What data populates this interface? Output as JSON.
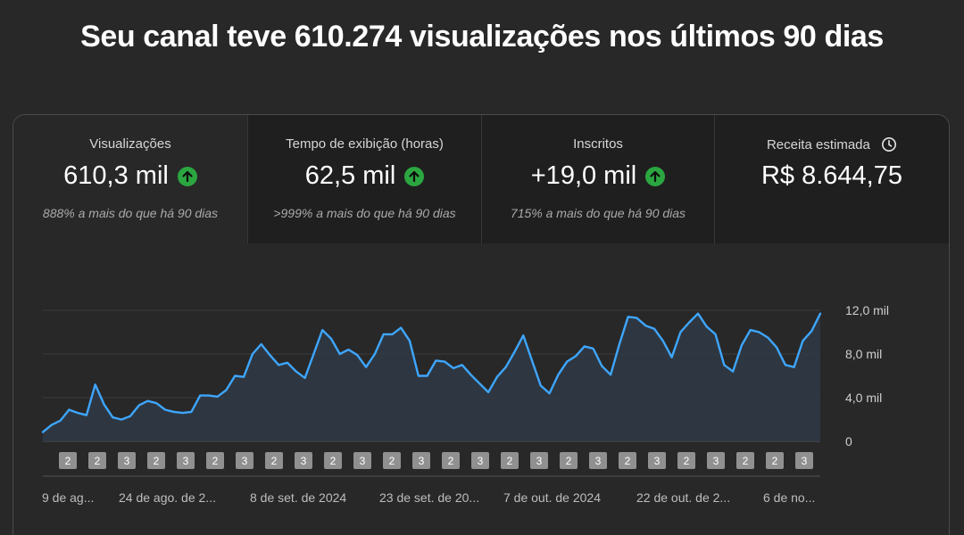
{
  "headline": "Seu canal teve 610.274 visualizações nos últimos 90 dias",
  "metrics": [
    {
      "label": "Visualizações",
      "value": "610,3 mil",
      "sub": "888% a mais do que há 90 dias",
      "icon": "arrow-up-icon"
    },
    {
      "label": "Tempo de exibição (horas)",
      "value": "62,5 mil",
      "sub": ">999% a mais do que há 90 dias",
      "icon": "arrow-up-icon"
    },
    {
      "label": "Inscritos",
      "value": "+19,0 mil",
      "sub": "715% a mais do que há 90 dias",
      "icon": "arrow-up-icon"
    },
    {
      "label": "Receita estimada",
      "value": "R$ 8.644,75",
      "icon": "clock-icon"
    }
  ],
  "colors": {
    "background": "#282828",
    "line": "#3ea6ff",
    "positive": "#2ba640",
    "badge": "#909090"
  },
  "chart_data": {
    "type": "area",
    "y_ticks": [
      "12,0 mil",
      "8,0 mil",
      "4,0 mil",
      "0"
    ],
    "ylim": [
      0,
      12000
    ],
    "x_tick_labels": [
      "9 de ag...",
      "24 de ago. de 2...",
      "8 de set. de 2024",
      "23 de set. de 20...",
      "7 de out. de 2024",
      "22 de out. de 2...",
      "6 de no..."
    ],
    "grid": true,
    "values": [
      850,
      1500,
      1900,
      2900,
      2600,
      2400,
      5200,
      3400,
      2200,
      2000,
      2300,
      3300,
      3700,
      3500,
      2900,
      2700,
      2600,
      2700,
      4200,
      4200,
      4100,
      4700,
      6000,
      5900,
      8000,
      8900,
      7900,
      7000,
      7200,
      6400,
      5800,
      8000,
      10200,
      9400,
      8000,
      8400,
      7900,
      6800,
      8000,
      9800,
      9800,
      10400,
      9200,
      6000,
      6000,
      7400,
      7300,
      6700,
      7000,
      6100,
      5300,
      4500,
      5900,
      6800,
      8200,
      9700,
      7400,
      5100,
      4400,
      6100,
      7300,
      7800,
      8700,
      8500,
      6900,
      6100,
      8900,
      11400,
      11300,
      10600,
      10300,
      9200,
      7700,
      10000,
      10900,
      11700,
      10500,
      9800,
      7000,
      6400,
      8800,
      10200,
      10000,
      9500,
      8600,
      7000,
      6800,
      9200,
      10100,
      11700
    ],
    "badges": [
      "2",
      "2",
      "3",
      "2",
      "3",
      "2",
      "3",
      "2",
      "3",
      "2",
      "3",
      "2",
      "3",
      "2",
      "3",
      "2",
      "3",
      "2",
      "3",
      "2",
      "3",
      "2",
      "3",
      "2",
      "2",
      "3"
    ]
  }
}
